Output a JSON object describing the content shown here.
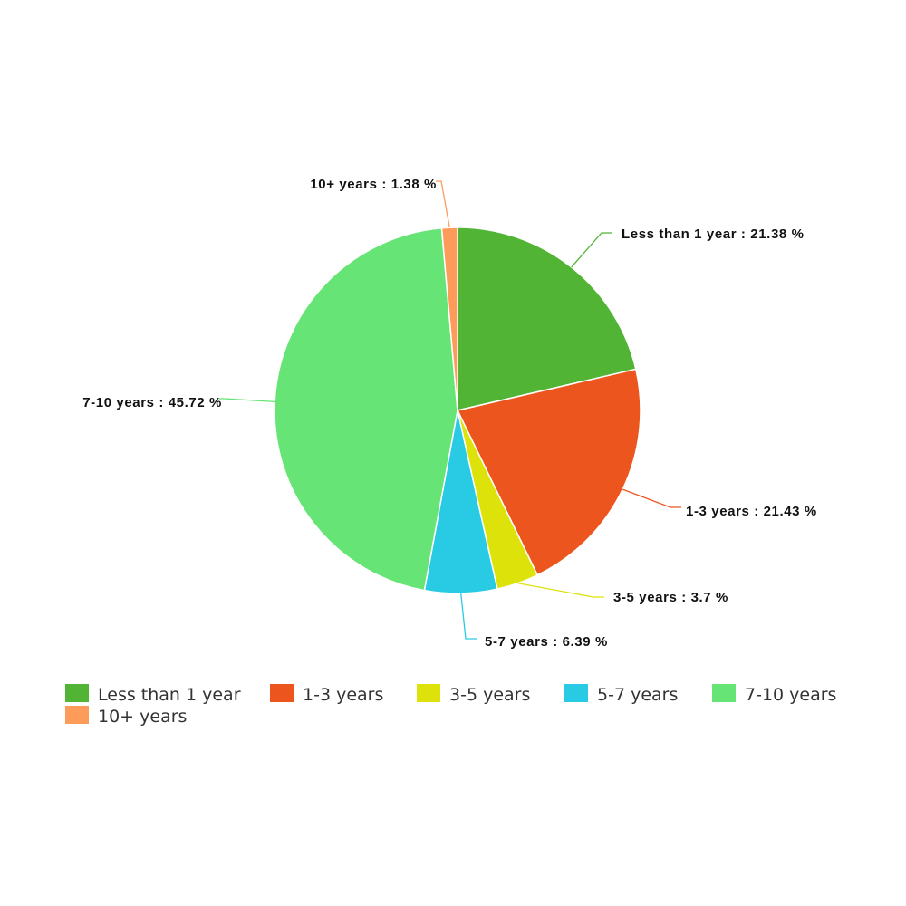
{
  "chart_data": {
    "type": "pie",
    "title": "",
    "start_angle_deg": 0,
    "direction": "clockwise",
    "label_separator": " : ",
    "value_suffix": " %",
    "legend_position": "bottom-left",
    "slices": [
      {
        "label": "Less than 1 year",
        "value": 21.38,
        "color": "#52b435"
      },
      {
        "label": "1-3 years",
        "value": 21.43,
        "color": "#ec561e"
      },
      {
        "label": "3-5 years",
        "value": 3.7,
        "color": "#dde20a"
      },
      {
        "label": "5-7 years",
        "value": 6.39,
        "color": "#29cae4"
      },
      {
        "label": "7-10 years",
        "value": 45.72,
        "color": "#66e475"
      },
      {
        "label": "10+ years",
        "value": 1.38,
        "color": "#fd9b5b"
      }
    ]
  }
}
